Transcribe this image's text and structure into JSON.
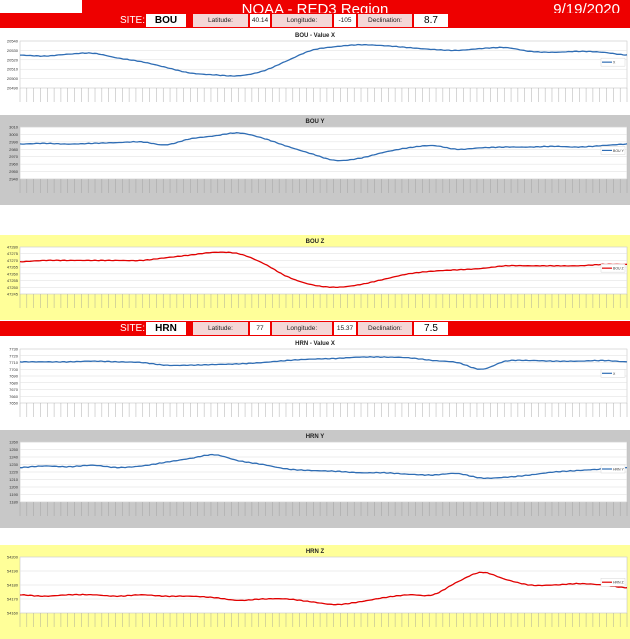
{
  "header": {
    "title": "NOAA - RED3 Region",
    "date": "9/19/2020"
  },
  "sites": [
    {
      "site_label": "SITE:",
      "name": "BOU",
      "lat_label": "Latitude:",
      "lat": "40.14",
      "lon_label": "Longitude:",
      "lon": "-105",
      "dec_label": "Declination:",
      "dec": "8.7"
    },
    {
      "site_label": "SITE:",
      "name": "HRN",
      "lat_label": "Latitude:",
      "lat": "77",
      "lon_label": "Longitude:",
      "lon": "15.37",
      "dec_label": "Declination:",
      "dec": "7.5"
    }
  ],
  "colors": {
    "blue": "#2f6db4",
    "red": "#e00000",
    "gray_bg": "#c8c8c8",
    "yellow_bg": "#ffff99"
  },
  "chart_data": [
    {
      "type": "line",
      "title": "BOU - Value X",
      "legend": "X",
      "legend_position": "right",
      "yticks": [
        "20540",
        "20530",
        "20520",
        "20510",
        "20500",
        "20490"
      ],
      "ylim": [
        20490,
        20540
      ],
      "y": [
        20525,
        20524,
        20526,
        20527,
        20522,
        20518,
        20512,
        20506,
        20504,
        20503,
        20508,
        20519,
        20530,
        20534,
        20536,
        20535,
        20533,
        20531,
        20530,
        20532,
        20533,
        20529,
        20528,
        20529,
        20528,
        20525
      ]
    },
    {
      "type": "line",
      "title": "BOU Y",
      "legend": "BOU Y",
      "legend_position": "right",
      "yticks": [
        "3010",
        "3000",
        "2990",
        "2980",
        "2970",
        "2960",
        "2950",
        "2940"
      ],
      "ylim": [
        2940,
        3010
      ],
      "y": [
        2987,
        2988,
        2987,
        2988,
        2989,
        2990,
        2986,
        2994,
        2998,
        3002,
        2995,
        2984,
        2974,
        2965,
        2968,
        2976,
        2982,
        2985,
        2980,
        2982,
        2983,
        2983,
        2984,
        2983,
        2985,
        2987
      ]
    },
    {
      "type": "line",
      "title": "BOU Z",
      "legend": "BOU Z",
      "legend_position": "right",
      "yticks": [
        "47280",
        "47275",
        "47270",
        "47265",
        "47260",
        "47255",
        "47250",
        "47245"
      ],
      "ylim": [
        47245,
        47280
      ],
      "y": [
        47269,
        47270,
        47270,
        47270,
        47270,
        47270,
        47272,
        47274,
        47276,
        47275,
        47268,
        47258,
        47252,
        47250,
        47252,
        47256,
        47260,
        47262,
        47263,
        47264,
        47266,
        47266,
        47266,
        47266,
        47267,
        47267
      ]
    },
    {
      "type": "line",
      "title": "HRN - Value X",
      "legend": "X",
      "legend_position": "right",
      "yticks": [
        "7730",
        "7720",
        "7710",
        "7700",
        "7690",
        "7680",
        "7670",
        "7660",
        "7650"
      ],
      "ylim": [
        7650,
        7730
      ],
      "y": [
        7711,
        7711,
        7711,
        7712,
        7711,
        7710,
        7706,
        7706,
        7707,
        7708,
        7710,
        7713,
        7715,
        7716,
        7718,
        7718,
        7717,
        7713,
        7710,
        7700,
        7712,
        7713,
        7712,
        7712,
        7713,
        7711
      ]
    },
    {
      "type": "line",
      "title": "HRN Y",
      "legend": "HRN Y",
      "legend_position": "right",
      "yticks": [
        "1260",
        "1250",
        "1240",
        "1230",
        "1220",
        "1210",
        "1200",
        "1190",
        "1180"
      ],
      "ylim": [
        1180,
        1260
      ],
      "y": [
        1226,
        1228,
        1227,
        1229,
        1226,
        1228,
        1233,
        1238,
        1243,
        1235,
        1230,
        1224,
        1222,
        1221,
        1219,
        1219,
        1217,
        1216,
        1218,
        1212,
        1213,
        1216,
        1220,
        1222,
        1224,
        1226
      ]
    },
    {
      "type": "line",
      "title": "HRN Z",
      "legend": "HRN Z",
      "legend_position": "right",
      "yticks": [
        "54200",
        "54190",
        "54180",
        "54170",
        "54160"
      ],
      "ylim": [
        54160,
        54200
      ],
      "y": [
        54173,
        54172,
        54173,
        54173,
        54172,
        54173,
        54172,
        54172,
        54171,
        54169,
        54170,
        54170,
        54168,
        54166,
        54168,
        54171,
        54173,
        54173,
        54182,
        54189,
        54184,
        54180,
        54180,
        54181,
        54180,
        54178
      ]
    }
  ]
}
